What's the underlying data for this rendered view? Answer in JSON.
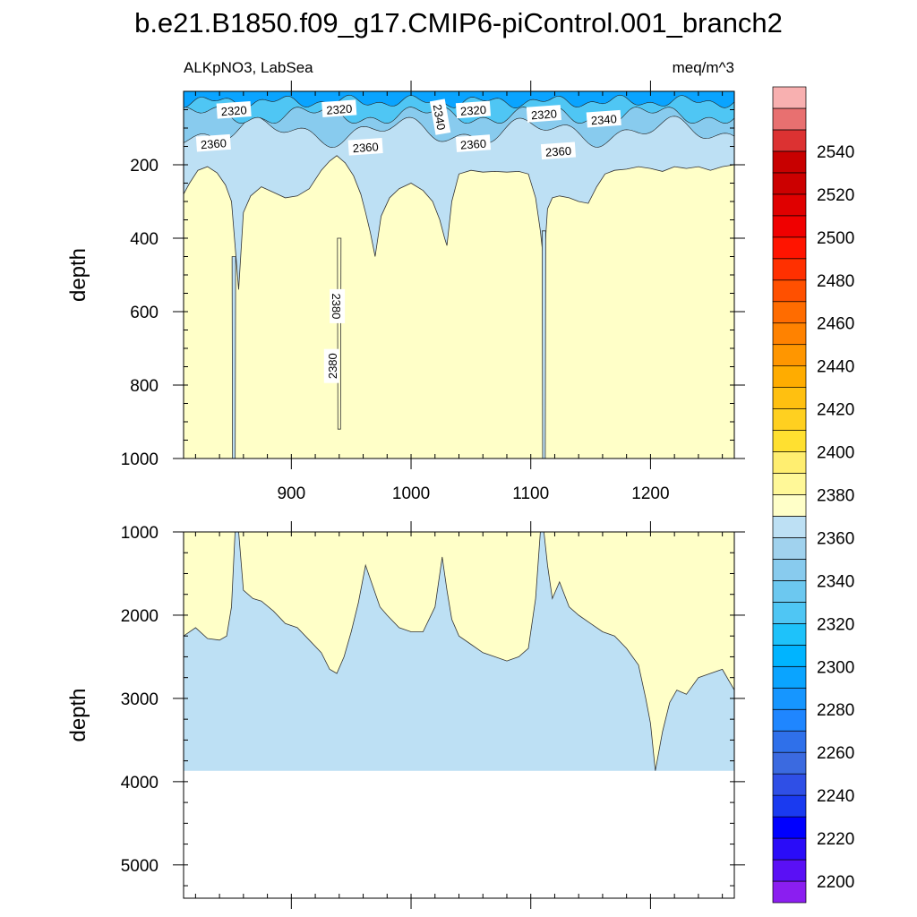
{
  "title": "b.e21.B1850.f09_g17.CMIP6-piControl.001_branch2",
  "panel_left_label": "ALKpNO3, LabSea",
  "panel_right_label": "meq/m^3",
  "chart_data": [
    {
      "type": "heatmap",
      "panel": "top",
      "ylabel": "depth",
      "xlim": [
        810,
        1270
      ],
      "ylim": [
        1000,
        0
      ],
      "x_ticks": [
        900,
        1000,
        1100,
        1200
      ],
      "y_ticks": [
        200,
        400,
        600,
        800,
        1000
      ],
      "contour_labels": [
        {
          "text": "2320",
          "x": 852,
          "y": 52
        },
        {
          "text": "2320",
          "x": 940,
          "y": 48
        },
        {
          "text": "2340",
          "x": 1024,
          "y": 70,
          "rotate": 80
        },
        {
          "text": "2320",
          "x": 1052,
          "y": 51
        },
        {
          "text": "2320",
          "x": 1111,
          "y": 62
        },
        {
          "text": "2340",
          "x": 1161,
          "y": 76
        },
        {
          "text": "2360",
          "x": 835,
          "y": 142
        },
        {
          "text": "2360",
          "x": 962,
          "y": 152
        },
        {
          "text": "2360",
          "x": 1052,
          "y": 143
        },
        {
          "text": "2360",
          "x": 1123,
          "y": 163
        },
        {
          "text": "2380",
          "x": 938,
          "y": 585,
          "rotate": 90
        },
        {
          "text": "2380",
          "x": 934,
          "y": 748,
          "rotate": -90
        }
      ],
      "boundary_2370": {
        "x": [
          810,
          815,
          822,
          830,
          838,
          845,
          850,
          853,
          856,
          860,
          866,
          875,
          885,
          895,
          905,
          915,
          925,
          932,
          938,
          945,
          952,
          958,
          962,
          966,
          970,
          975,
          982,
          990,
          1000,
          1010,
          1018,
          1024,
          1028,
          1030,
          1034,
          1040,
          1050,
          1060,
          1070,
          1080,
          1090,
          1098,
          1104,
          1108,
          1111,
          1114,
          1118,
          1124,
          1132,
          1140,
          1148,
          1155,
          1162,
          1170,
          1180,
          1190,
          1200,
          1210,
          1220,
          1230,
          1240,
          1250,
          1260,
          1270
        ],
        "y": [
          280,
          250,
          215,
          205,
          222,
          255,
          300,
          420,
          540,
          330,
          285,
          260,
          275,
          290,
          285,
          265,
          215,
          190,
          175,
          195,
          230,
          280,
          330,
          385,
          450,
          340,
          290,
          265,
          250,
          270,
          300,
          350,
          400,
          420,
          300,
          225,
          215,
          220,
          218,
          220,
          218,
          225,
          290,
          380,
          470,
          320,
          290,
          285,
          290,
          300,
          305,
          260,
          225,
          215,
          212,
          205,
          210,
          218,
          205,
          210,
          205,
          215,
          205,
          200
        ]
      },
      "deep_plumes": [
        {
          "x_center": 852,
          "y_top": 450,
          "y_bottom": 1000
        },
        {
          "x_center": 1111,
          "y_top": 380,
          "y_bottom": 1000
        },
        {
          "x_center": 940,
          "y_top": 400,
          "y_bottom": 920
        }
      ]
    },
    {
      "type": "heatmap",
      "panel": "bottom",
      "ylabel": "depth",
      "xlim": [
        810,
        1270
      ],
      "ylim": [
        1000,
        5400
      ],
      "x_ticks": [
        900,
        1000,
        1100,
        1200
      ],
      "y_ticks": [
        1000,
        2000,
        3000,
        4000,
        5000
      ],
      "ocean_floor_depth": 3870,
      "boundary_2370": {
        "x": [
          810,
          820,
          830,
          840,
          846,
          850,
          853,
          856,
          860,
          868,
          875,
          885,
          895,
          905,
          915,
          925,
          932,
          938,
          944,
          950,
          956,
          962,
          968,
          974,
          980,
          990,
          1000,
          1010,
          1020,
          1026,
          1030,
          1034,
          1040,
          1050,
          1060,
          1070,
          1080,
          1090,
          1098,
          1104,
          1108,
          1111,
          1114,
          1118,
          1124,
          1132,
          1140,
          1150,
          1160,
          1170,
          1180,
          1190,
          1196,
          1200,
          1204,
          1210,
          1216,
          1222,
          1230,
          1240,
          1250,
          1260,
          1270
        ],
        "y": [
          2250,
          2150,
          2280,
          2300,
          2250,
          1900,
          1000,
          1000,
          1700,
          1800,
          1830,
          1950,
          2100,
          2150,
          2300,
          2450,
          2650,
          2700,
          2500,
          2200,
          1850,
          1400,
          1650,
          1900,
          2000,
          2150,
          2200,
          2200,
          1900,
          1300,
          1700,
          2050,
          2250,
          2350,
          2450,
          2500,
          2550,
          2500,
          2400,
          1800,
          1000,
          1000,
          1400,
          1800,
          1600,
          1900,
          2000,
          2100,
          2200,
          2250,
          2400,
          2600,
          3000,
          3300,
          3870,
          3400,
          3050,
          2900,
          2950,
          2750,
          2700,
          2650,
          2900
        ]
      }
    }
  ],
  "colorbar": {
    "min": 2190,
    "step": 10,
    "colors": [
      "#8b1ef0",
      "#5a10f5",
      "#2a0cf8",
      "#0000ff",
      "#1a3af0",
      "#2f4fe6",
      "#3b6ae0",
      "#2f70ea",
      "#1f86ff",
      "#1696ff",
      "#0aa4ff",
      "#00b4ff",
      "#1ec2fa",
      "#4fc6f4",
      "#6cc8f0",
      "#88cbee",
      "#a0d2ee",
      "#bde0f4",
      "#ffffc8",
      "#fff898",
      "#ffee70",
      "#ffe030",
      "#ffd020",
      "#ffc010",
      "#ffac00",
      "#ff9600",
      "#ff8200",
      "#ff6c00",
      "#ff5000",
      "#ff3000",
      "#ff1400",
      "#f00000",
      "#e00000",
      "#cc0000",
      "#c80000",
      "#dc3232",
      "#e87070",
      "#f8b0b0"
    ],
    "labels": [
      "2200",
      "2220",
      "2240",
      "2260",
      "2280",
      "2300",
      "2320",
      "2340",
      "2360",
      "2380",
      "2400",
      "2420",
      "2440",
      "2460",
      "2480",
      "2500",
      "2520",
      "2540"
    ]
  },
  "colors": {
    "below": "#bde0f4",
    "above": "#ffffc8",
    "surface_dark": "#0aa4ff",
    "surface_mid": "#4fc6f4",
    "surface_light": "#88cbee"
  }
}
